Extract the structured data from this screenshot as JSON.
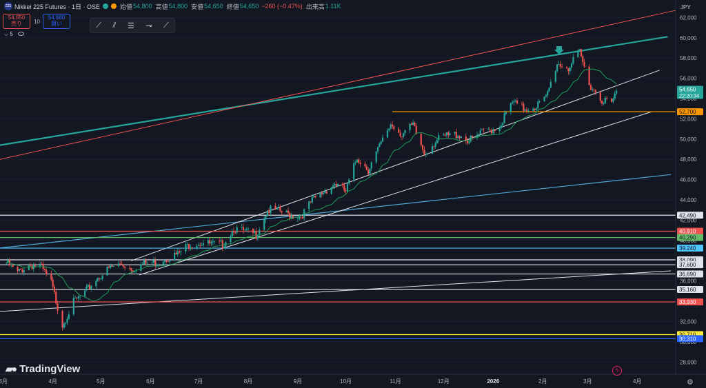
{
  "header": {
    "badge": "225",
    "title": "Nikkei 225 Futures · 1日 · OSE",
    "open_label": "始値",
    "open": "54,800",
    "high_label": "高値",
    "high": "54,800",
    "low_label": "安値",
    "low": "54,650",
    "close_label": "終値",
    "close": "54,650",
    "change": "−260 (−0.47%)",
    "volume_label": "出来高",
    "volume": "1.11K"
  },
  "order": {
    "sell_price": "54,650",
    "sell_label": "売り",
    "spread": "10",
    "buy_price": "54,660",
    "buy_label": "買い"
  },
  "indicator_count": "5",
  "currency": "JPY",
  "brand": "TradingView",
  "colors": {
    "background": "#131722",
    "up": "#26a69a",
    "down": "#ef5350",
    "ma": "#1e9e5a"
  },
  "chart_data": {
    "type": "candlestick",
    "x_label": "",
    "y_label": "",
    "x_ticks": [
      "3月",
      "4月",
      "5月",
      "6月",
      "7月",
      "8月",
      "9月",
      "10月",
      "11月",
      "12月",
      "2026",
      "2月",
      "3月",
      "4月"
    ],
    "y_ticks": [
      28000,
      30000,
      32000,
      34000,
      36000,
      38000,
      40000,
      42000,
      44000,
      46000,
      48000,
      50000,
      52000,
      54000,
      56000,
      58000,
      60000,
      62000
    ],
    "ylim": [
      26800,
      62500
    ],
    "last_price": {
      "value": "54,650",
      "countdown": "22:20:34"
    },
    "series": [
      {
        "name": "",
        "type": "close_approx",
        "points": [
          [
            "2025-03-03",
            37800
          ],
          [
            "2025-03-10",
            36800
          ],
          [
            "2025-03-17",
            37600
          ],
          [
            "2025-03-24",
            37500
          ],
          [
            "2025-03-31",
            35800
          ],
          [
            "2025-04-07",
            31700
          ],
          [
            "2025-04-14",
            33900
          ],
          [
            "2025-04-21",
            34800
          ],
          [
            "2025-04-28",
            36200
          ],
          [
            "2025-05-07",
            37300
          ],
          [
            "2025-05-14",
            37700
          ],
          [
            "2025-05-21",
            37200
          ],
          [
            "2025-05-28",
            37700
          ],
          [
            "2025-06-04",
            37800
          ],
          [
            "2025-06-11",
            38300
          ],
          [
            "2025-06-18",
            38600
          ],
          [
            "2025-06-25",
            39600
          ],
          [
            "2025-07-02",
            39800
          ],
          [
            "2025-07-09",
            39600
          ],
          [
            "2025-07-16",
            39600
          ],
          [
            "2025-07-23",
            41200
          ],
          [
            "2025-07-30",
            40800
          ],
          [
            "2025-08-06",
            40600
          ],
          [
            "2025-08-13",
            43000
          ],
          [
            "2025-08-20",
            42900
          ],
          [
            "2025-08-27",
            42500
          ],
          [
            "2025-09-03",
            42400
          ],
          [
            "2025-09-10",
            43900
          ],
          [
            "2025-09-17",
            44800
          ],
          [
            "2025-09-24",
            45600
          ],
          [
            "2025-10-01",
            44800
          ],
          [
            "2025-10-08",
            48200
          ],
          [
            "2025-10-15",
            47000
          ],
          [
            "2025-10-22",
            49200
          ],
          [
            "2025-10-29",
            51500
          ],
          [
            "2025-11-05",
            50500
          ],
          [
            "2025-11-12",
            51300
          ],
          [
            "2025-11-19",
            48600
          ],
          [
            "2025-11-26",
            49800
          ],
          [
            "2025-12-03",
            50300
          ],
          [
            "2025-12-10",
            50500
          ],
          [
            "2025-12-17",
            49800
          ],
          [
            "2025-12-24",
            50500
          ],
          [
            "2026-01-05",
            51300
          ],
          [
            "2026-01-13",
            53600
          ],
          [
            "2026-01-20",
            53000
          ],
          [
            "2026-01-27",
            53200
          ],
          [
            "2026-02-03",
            54000
          ],
          [
            "2026-02-10",
            57500
          ],
          [
            "2026-02-17",
            57000
          ],
          [
            "2026-02-24",
            58500
          ],
          [
            "2026-03-02",
            55500
          ],
          [
            "2026-03-09",
            54000
          ],
          [
            "2026-03-16",
            53500
          ],
          [
            "2026-03-19",
            54650
          ]
        ]
      }
    ],
    "horizontal_levels": [
      {
        "label": "52,700",
        "value": 52700,
        "color": "#ff9800",
        "text_color": "#131722"
      },
      {
        "label": "42,490",
        "value": 42490,
        "color": "#e0e3eb",
        "text_color": "#131722"
      },
      {
        "label": "40,910",
        "value": 40910,
        "color": "#ef5350",
        "text_color": "#ffffff"
      },
      {
        "label": "40,290",
        "value": 40290,
        "color": "#66bb6a",
        "text_color": "#131722"
      },
      {
        "label": "39,240",
        "value": 39240,
        "color": "#4fc3f7",
        "text_color": "#131722"
      },
      {
        "label": "38,090",
        "value": 38090,
        "color": "#e0e3eb",
        "text_color": "#131722"
      },
      {
        "label": "37,600",
        "value": 37600,
        "color": "#e0e3eb",
        "text_color": "#131722"
      },
      {
        "label": "36,690",
        "value": 36690,
        "color": "#e0e3eb",
        "text_color": "#131722"
      },
      {
        "label": "35,160",
        "value": 35160,
        "color": "#e0e3eb",
        "text_color": "#131722"
      },
      {
        "label": "33,930",
        "value": 33930,
        "color": "#ef5350",
        "text_color": "#ffffff"
      },
      {
        "label": "30,710",
        "value": 30710,
        "color": "#ffeb3b",
        "text_color": "#131722"
      },
      {
        "label": "30,310",
        "value": 30310,
        "color": "#2962ff",
        "text_color": "#ffffff"
      }
    ]
  }
}
